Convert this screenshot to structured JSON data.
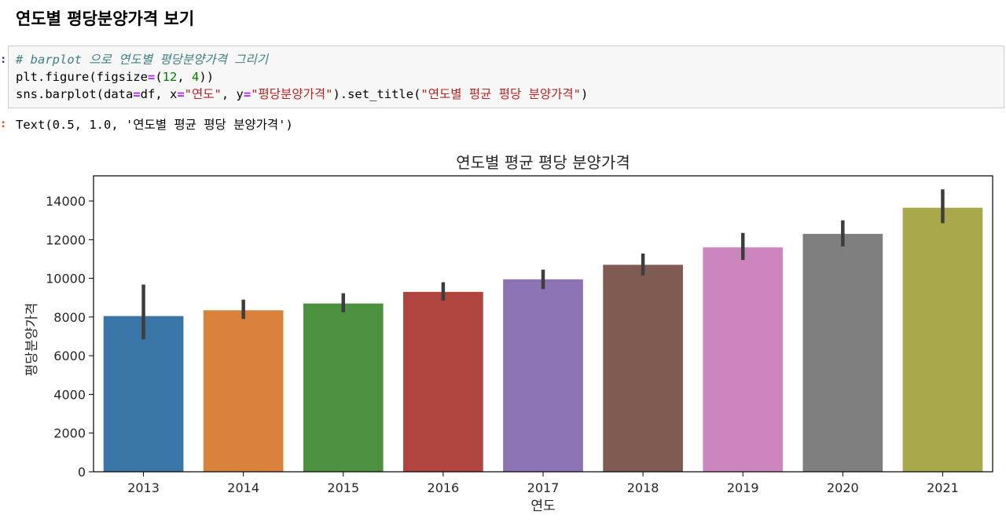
{
  "heading": "연도별 평당분양가격 보기",
  "code": {
    "comment": "# barplot 으로 연도별 평당분양가격 그리기",
    "line2": {
      "a": "plt.figure(figsize",
      "eq": "=",
      "b": "(",
      "n1": "12",
      "c": ", ",
      "n2": "4",
      "d": "))"
    },
    "line3": {
      "a": "sns.barplot(data",
      "eq1": "=",
      "b": "df, x",
      "eq2": "=",
      "s1": "\"연도\"",
      "c": ", y",
      "eq3": "=",
      "s2": "\"평당분양가격\"",
      "d": ").set_title(",
      "s3": "\"연도별 평균 평당 분양가격\"",
      "e": ")"
    }
  },
  "output_text": "Text(0.5, 1.0, '연도별 평균 평당 분양가격')",
  "chart_data": {
    "type": "bar",
    "title": "연도별 평균 평당 분양가격",
    "xlabel": "연도",
    "ylabel": "평당분양가격",
    "categories": [
      "2013",
      "2014",
      "2015",
      "2016",
      "2017",
      "2018",
      "2019",
      "2020",
      "2021"
    ],
    "values": [
      8050,
      8350,
      8700,
      9300,
      9950,
      10700,
      11600,
      12300,
      13650
    ],
    "ci_low": [
      6850,
      7900,
      8250,
      8850,
      9450,
      10150,
      10950,
      11650,
      12850
    ],
    "ci_high": [
      9680,
      8900,
      9230,
      9800,
      10450,
      11280,
      12350,
      13000,
      14600
    ],
    "colors": [
      "#3a75a8",
      "#d8823c",
      "#4c913f",
      "#b0443f",
      "#8c73b3",
      "#7f5b52",
      "#cc86bd",
      "#7f7f7f",
      "#a9a84a"
    ],
    "ylim": [
      0,
      15300
    ],
    "yticks": [
      "0",
      "2000",
      "4000",
      "6000",
      "8000",
      "10000",
      "12000",
      "14000"
    ],
    "grid": false
  }
}
